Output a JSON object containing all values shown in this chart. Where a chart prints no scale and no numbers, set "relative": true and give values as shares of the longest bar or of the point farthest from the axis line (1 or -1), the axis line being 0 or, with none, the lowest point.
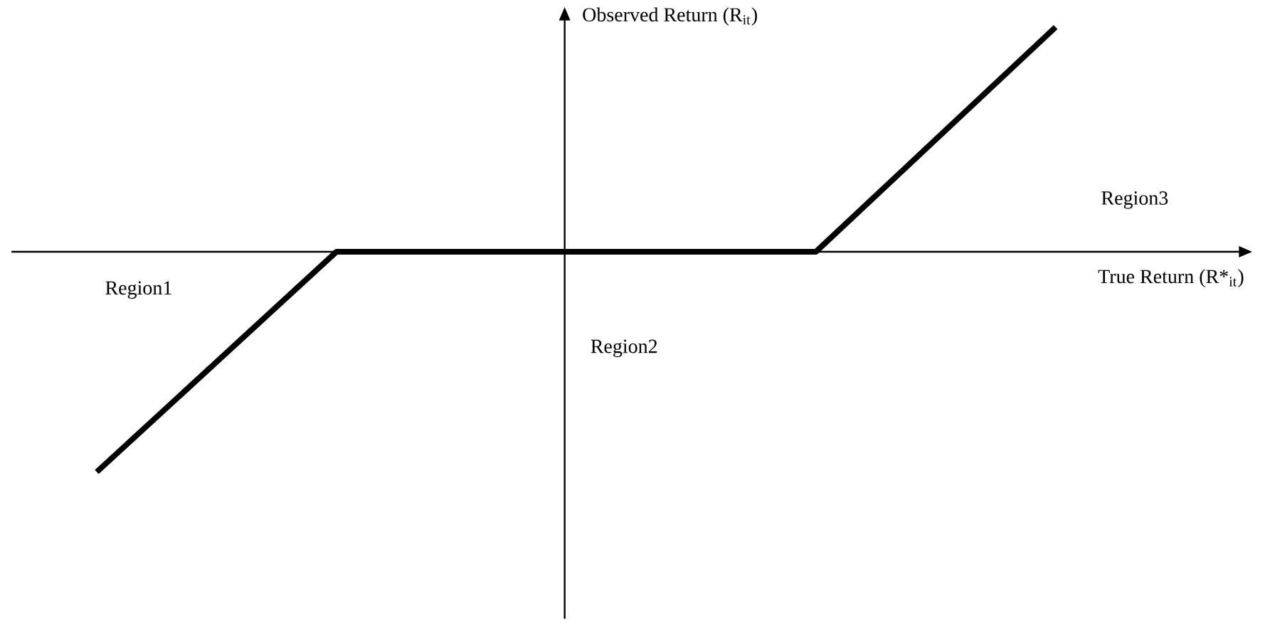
{
  "chart_data": {
    "type": "line",
    "relative": true,
    "xlabel": "True Return (R*$_{it}$)",
    "ylabel": "Observed Return (R$_{it}$)",
    "categories": [
      null,
      null,
      null,
      null,
      null
    ],
    "series": [
      {
        "color": "#000000",
        "values": [
          -0.98,
          0,
          0,
          0,
          1
        ]
      }
    ],
    "annotations": [
      "Region1",
      "Region2",
      "Region3"
    ],
    "marker": "none",
    "line_style": "solid"
  }
}
